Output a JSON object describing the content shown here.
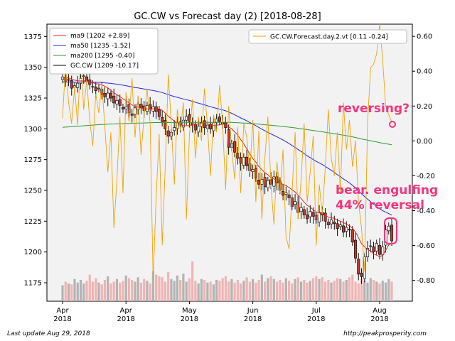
{
  "chart_data": {
    "type": "candlestick",
    "title": "GC.CW vs Forecast day (2)  [2018-08-28]",
    "x_ticks": [
      {
        "label": "Apr\n2018",
        "idx": 0
      },
      {
        "label": "Apr\n2018",
        "idx": 21
      },
      {
        "label": "May\n2018",
        "idx": 42
      },
      {
        "label": "Jun\n2018",
        "idx": 63
      },
      {
        "label": "Jul\n2018",
        "idx": 84
      },
      {
        "label": "Aug\n2018",
        "idx": 105
      }
    ],
    "y_left": {
      "range": [
        1160,
        1385
      ],
      "ticks": [
        1175,
        1200,
        1225,
        1250,
        1275,
        1300,
        1325,
        1350,
        1375
      ]
    },
    "y_right": {
      "range": [
        -0.92,
        0.67
      ],
      "ticks": [
        "0.60",
        "0.40",
        "0.20",
        "0.00",
        "-0.20",
        "-0.40",
        "-0.60",
        "-0.80"
      ]
    },
    "legend_left": [
      {
        "name": "ma9 [1202 +2.89]",
        "color": "#e8211d"
      },
      {
        "name": "ma50 [1235 -1.52]",
        "color": "#2424e0"
      },
      {
        "name": "ma200 [1295 -0.40]",
        "color": "#2a9d2a"
      },
      {
        "name": "GC.CW [1209 -10.17]",
        "color": "#000000"
      }
    ],
    "legend_right": [
      {
        "name": "GC.CW.Forecast.day.2.vt [0.11 -0.24]",
        "color": "#f0a30a"
      }
    ],
    "annotations": [
      "reversing?",
      "bear. engulfing",
      "44% reversal"
    ],
    "close": [
      1342,
      1338,
      1340,
      1333,
      1335,
      1337,
      1341,
      1343,
      1339,
      1336,
      1334,
      1331,
      1333,
      1328,
      1326,
      1329,
      1325,
      1321,
      1323,
      1319,
      1316,
      1318,
      1313,
      1311,
      1317,
      1320,
      1317,
      1315,
      1319,
      1316,
      1318,
      1314,
      1310,
      1306,
      1300,
      1294,
      1297,
      1301,
      1305,
      1303,
      1307,
      1310,
      1306,
      1303,
      1299,
      1302,
      1305,
      1301,
      1303,
      1300,
      1305,
      1308,
      1306,
      1304,
      1301,
      1285,
      1288,
      1281,
      1276,
      1272,
      1277,
      1270,
      1266,
      1267,
      1260,
      1255,
      1259,
      1253,
      1258,
      1255,
      1261,
      1256,
      1250,
      1246,
      1248,
      1244,
      1237,
      1241,
      1232,
      1236,
      1230,
      1227,
      1233,
      1229,
      1226,
      1232,
      1230,
      1225,
      1222,
      1226,
      1223,
      1219,
      1222,
      1216,
      1220,
      1218,
      1208,
      1195,
      1182,
      1180,
      1196,
      1203,
      1205,
      1200,
      1207,
      1198,
      1204,
      1218,
      1221,
      1209
    ],
    "forecast": [
      0.13,
      0.44,
      0.22,
      0.1,
      0.31,
      0.09,
      0.5,
      0.18,
      0.35,
      0.12,
      -0.03,
      0.27,
      0.16,
      0.33,
      0.08,
      -0.18,
      0.05,
      -0.5,
      -0.22,
      0.14,
      -0.3,
      0.28,
      0.11,
      0.36,
      0.02,
      0.26,
      -0.08,
      0.15,
      0.3,
      0.1,
      -0.8,
      -0.32,
      0.04,
      -0.6,
      -0.15,
      0.38,
      0.1,
      -0.25,
      0.18,
      0.06,
      0.22,
      -0.45,
      0.03,
      0.24,
      -0.1,
      0.14,
      0.0,
      0.3,
      0.08,
      -0.2,
      0.15,
      0.05,
      0.32,
      0.1,
      -0.28,
      0.2,
      -0.05,
      -0.22,
      0.08,
      -0.3,
      0.1,
      0.02,
      -0.18,
      0.12,
      -0.35,
      0.06,
      -0.45,
      -0.1,
      0.14,
      -0.25,
      -0.48,
      -0.12,
      -0.3,
      -0.05,
      -0.55,
      -0.62,
      -0.3,
      0.05,
      -0.45,
      -0.22,
      0.1,
      -0.35,
      -0.18,
      0.03,
      -0.6,
      -0.25,
      -0.42,
      -0.15,
      0.18,
      -0.1,
      -0.2,
      0.05,
      -0.3,
      0.22,
      -0.05,
      0.12,
      -0.15,
      0.0,
      -0.35,
      -0.5,
      -0.75,
      0.1,
      0.42,
      0.44,
      0.5,
      0.67,
      0.46,
      0.2,
      0.15,
      0.11
    ],
    "volume": [
      18,
      22,
      20,
      19,
      25,
      21,
      24,
      20,
      23,
      30,
      22,
      26,
      21,
      19,
      24,
      28,
      20,
      22,
      25,
      21,
      23,
      29,
      26,
      24,
      22,
      27,
      21,
      25,
      23,
      20,
      34,
      30,
      28,
      27,
      22,
      33,
      25,
      23,
      29,
      24,
      31,
      22,
      26,
      45,
      23,
      20,
      25,
      24,
      21,
      22,
      19,
      24,
      23,
      26,
      28,
      22,
      25,
      21,
      24,
      20,
      23,
      27,
      22,
      25,
      21,
      24,
      30,
      22,
      26,
      28,
      25,
      22,
      24,
      21,
      26,
      23,
      20,
      25,
      27,
      22,
      24,
      21,
      23,
      26,
      28,
      25,
      27,
      22,
      24,
      21,
      23,
      26,
      25,
      22,
      24,
      27,
      30,
      22,
      20,
      25,
      23,
      21,
      26,
      24,
      22,
      20,
      23,
      21,
      25,
      22
    ]
  },
  "footer": {
    "left": "Last update Aug 29, 2018",
    "right": "http://peakprosperity.com"
  }
}
